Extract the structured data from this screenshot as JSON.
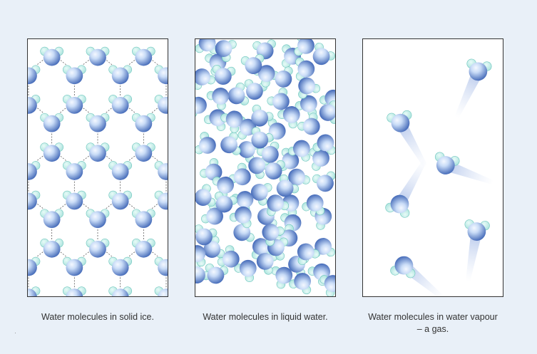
{
  "colors": {
    "page_background": "#e9f0f8",
    "oxygen_light": "#c9dcf7",
    "oxygen_dark": "#3d64b5",
    "hydrogen": "#a9e2dc",
    "hydrogen_edge": "#6cc5bc",
    "bond_line": "#555555"
  },
  "icons": [
    "water-molecule-icon",
    "motion-trail-icon"
  ],
  "panels": [
    {
      "state": "solid",
      "caption_lines": [
        "Water molecules in solid ice."
      ]
    },
    {
      "state": "liquid",
      "caption_lines": [
        "Water molecules in liquid water."
      ]
    },
    {
      "state": "gas",
      "caption_lines": [
        "Water molecules in water vapour",
        "– a gas."
      ]
    }
  ]
}
